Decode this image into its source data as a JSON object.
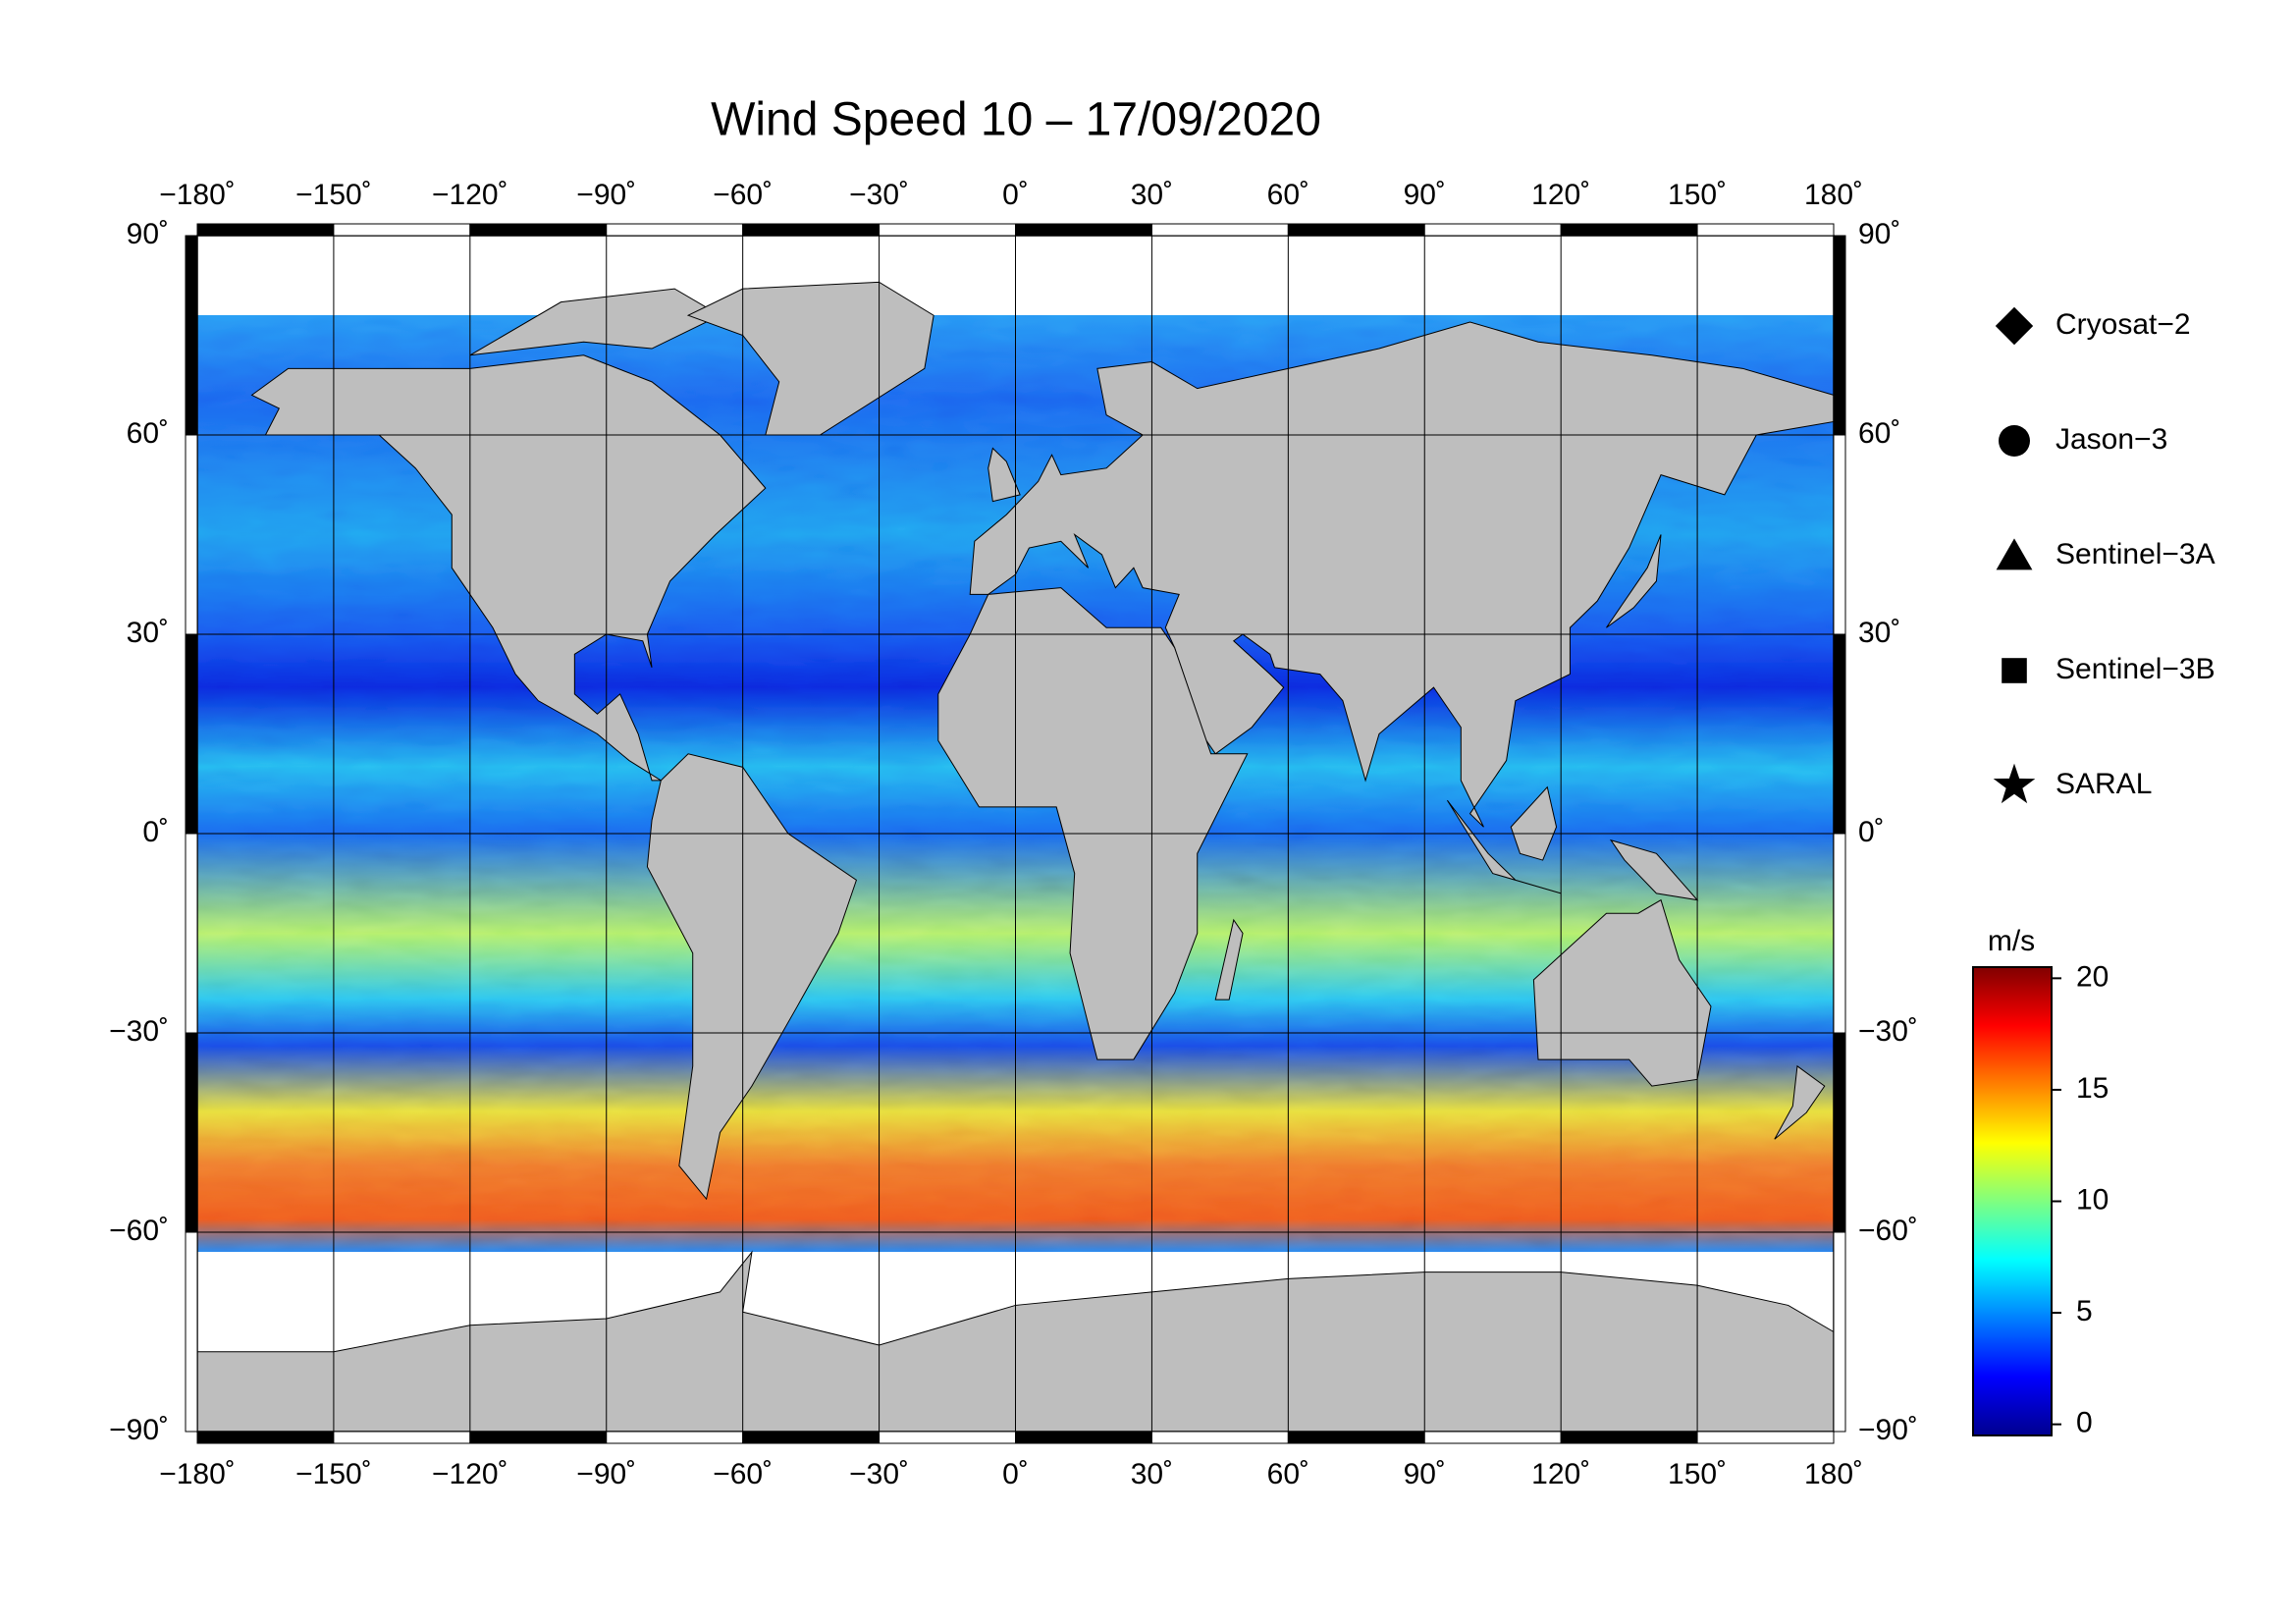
{
  "title": "Wind Speed 10 – 17/09/2020",
  "map": {
    "xlim": [
      -180,
      180
    ],
    "ylim": [
      -90,
      90
    ],
    "xticks": [
      {
        "value": -180,
        "label": "−180˚"
      },
      {
        "value": -150,
        "label": "−150˚"
      },
      {
        "value": -120,
        "label": "−120˚"
      },
      {
        "value": -90,
        "label": "−90˚"
      },
      {
        "value": -60,
        "label": "−60˚"
      },
      {
        "value": -30,
        "label": "−30˚"
      },
      {
        "value": 0,
        "label": "0˚"
      },
      {
        "value": 30,
        "label": "30˚"
      },
      {
        "value": 60,
        "label": "60˚"
      },
      {
        "value": 90,
        "label": "90˚"
      },
      {
        "value": 120,
        "label": "120˚"
      },
      {
        "value": 150,
        "label": "150˚"
      },
      {
        "value": 180,
        "label": "180˚"
      }
    ],
    "yticks": [
      {
        "value": 90,
        "label": "90˚"
      },
      {
        "value": 60,
        "label": "60˚"
      },
      {
        "value": 30,
        "label": "30˚"
      },
      {
        "value": 0,
        "label": "0˚"
      },
      {
        "value": -30,
        "label": "−30˚"
      },
      {
        "value": -60,
        "label": "−60˚"
      },
      {
        "value": -90,
        "label": "−90˚"
      }
    ],
    "grid": true
  },
  "legend": [
    {
      "name": "Cryosat−2",
      "marker": "diamond"
    },
    {
      "name": "Jason−3",
      "marker": "circle"
    },
    {
      "name": "Sentinel−3A",
      "marker": "triangle"
    },
    {
      "name": "Sentinel−3B",
      "marker": "square"
    },
    {
      "name": "SARAL",
      "marker": "star"
    }
  ],
  "colorbar": {
    "label": "m/s",
    "lim": [
      -0.5,
      20.5
    ],
    "ticks": [
      0,
      5,
      10,
      15,
      20
    ],
    "colormap": "jet"
  }
}
